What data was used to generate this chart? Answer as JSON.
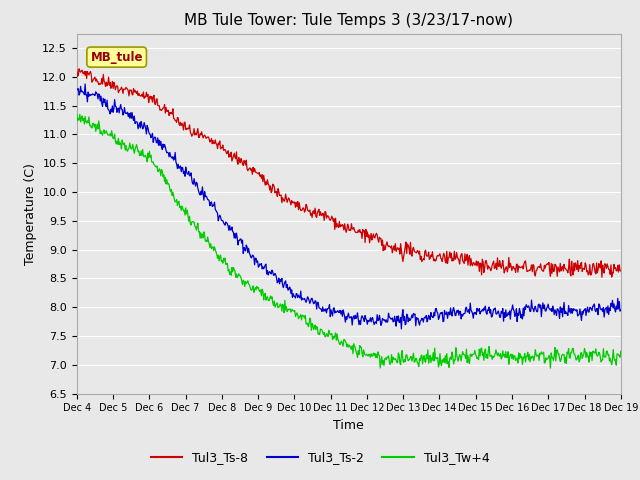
{
  "title": "MB Tule Tower: Tule Temps 3 (3/23/17-now)",
  "xlabel": "Time",
  "ylabel": "Temperature (C)",
  "ylim": [
    6.5,
    12.75
  ],
  "yticks": [
    6.5,
    7.0,
    7.5,
    8.0,
    8.5,
    9.0,
    9.5,
    10.0,
    10.5,
    11.0,
    11.5,
    12.0,
    12.5
  ],
  "xtick_labels": [
    "Dec 4",
    "Dec 5",
    "Dec 6",
    "Dec 7",
    "Dec 8",
    "Dec 9",
    "Dec 10",
    "Dec 11",
    "Dec 12",
    "Dec 13",
    "Dec 14",
    "Dec 15",
    "Dec 16",
    "Dec 17",
    "Dec 18",
    "Dec 19"
  ],
  "background_color": "#e8e8e8",
  "plot_bg_color": "#e8e8e8",
  "grid_color": "#ffffff",
  "line_colors": [
    "#cc0000",
    "#0000cc",
    "#00cc00"
  ],
  "legend_labels": [
    "Tul3_Ts-8",
    "Tul3_Ts-2",
    "Tul3_Tw+4"
  ],
  "annotation_text": "MB_tule",
  "annotation_color": "#990000",
  "annotation_bg": "#ffff99",
  "title_fontsize": 11,
  "axis_fontsize": 9,
  "tick_fontsize": 8,
  "legend_fontsize": 9
}
